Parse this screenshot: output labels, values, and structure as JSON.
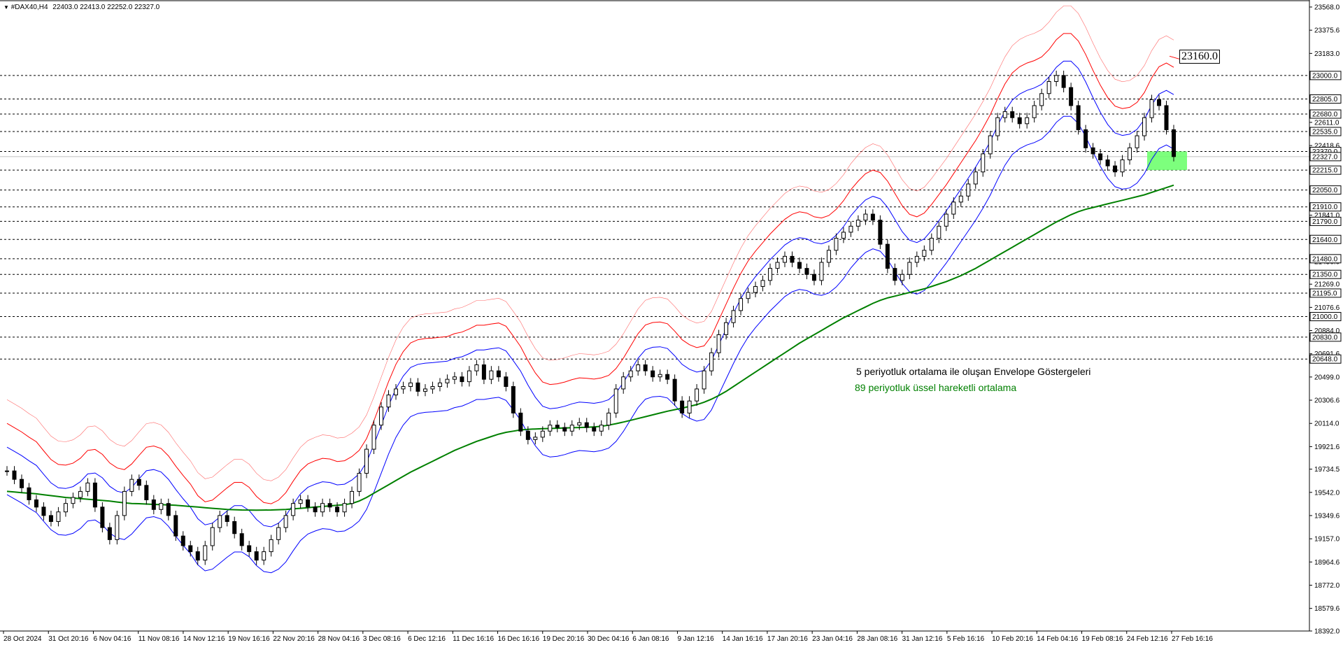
{
  "header": {
    "symbol": "#DAX40,H4",
    "ohlc": "22403.0 22413.0 22252.0 22327.0"
  },
  "annotations": {
    "envelope_note": "5 periyotluk ortalama ile oluşan Envelope Göstergeleri",
    "ema_note": "89 periyotluk üssel hareketli ortalama",
    "target_label": "23160.0"
  },
  "colors": {
    "candles": "#000000",
    "envelope_inner": "#0000ff",
    "envelope_middle": "#ff0000",
    "envelope_outer": "#ff6666",
    "ema": "#008000",
    "highlight": "#66ff66",
    "ema_note_text": "#008000"
  },
  "chart_data": {
    "type": "line",
    "ylim": [
      18392.0,
      23568.0
    ],
    "grid": false,
    "y_ticks": [
      "23568.0",
      "23375.6",
      "23183.0",
      "22990.6",
      "22805.0",
      "22611.0",
      "22418.6",
      "22327.0",
      "22226.0",
      "22033.6",
      "21841.0",
      "21648.6",
      "21456.0",
      "21269.0",
      "21076.6",
      "20884.0",
      "20691.6",
      "20499.0",
      "20306.6",
      "20114.0",
      "19921.6",
      "19734.5",
      "19542.0",
      "19349.6",
      "19157.0",
      "18964.6",
      "18772.0",
      "18579.6",
      "18392.0"
    ],
    "x_ticks": [
      "28 Oct 2024",
      "31 Oct 20:16",
      "6 Nov 04:16",
      "11 Nov 08:16",
      "14 Nov 12:16",
      "19 Nov 16:16",
      "22 Nov 20:16",
      "28 Nov 04:16",
      "3 Dec 08:16",
      "6 Dec 12:16",
      "11 Dec 16:16",
      "16 Dec 16:16",
      "19 Dec 20:16",
      "30 Dec 04:16",
      "6 Jan 08:16",
      "9 Jan 12:16",
      "14 Jan 16:16",
      "17 Jan 20:16",
      "23 Jan 04:16",
      "28 Jan 08:16",
      "31 Jan 12:16",
      "5 Feb 16:16",
      "10 Feb 20:16",
      "14 Feb 04:16",
      "19 Feb 08:16",
      "24 Feb 12:16",
      "27 Feb 16:16"
    ],
    "horizontal_levels": [
      "23000.0",
      "22805.0",
      "22680.0",
      "22535.0",
      "22370.0",
      "22215.0",
      "22050.0",
      "21910.0",
      "21790.0",
      "21640.0",
      "21480.0",
      "21350.0",
      "21195.0",
      "21000.0",
      "20830.0",
      "20648.0"
    ],
    "current_price": "22327.0",
    "highlight_zone": [
      22215.0,
      22370.0
    ],
    "close_series": [
      19720,
      19650,
      19580,
      19480,
      19420,
      19350,
      19300,
      19380,
      19450,
      19500,
      19550,
      19620,
      19420,
      19250,
      19150,
      19350,
      19550,
      19650,
      19600,
      19480,
      19400,
      19450,
      19350,
      19180,
      19100,
      19050,
      18980,
      19100,
      19250,
      19350,
      19300,
      19200,
      19100,
      19050,
      18980,
      19050,
      19150,
      19250,
      19350,
      19450,
      19480,
      19420,
      19380,
      19450,
      19420,
      19380,
      19450,
      19550,
      19700,
      19900,
      20100,
      20250,
      20350,
      20400,
      20420,
      20450,
      20380,
      20400,
      20420,
      20450,
      20480,
      20500,
      20460,
      20550,
      20600,
      20480,
      20550,
      20500,
      20420,
      20200,
      20050,
      19980,
      20000,
      20050,
      20100,
      20080,
      20050,
      20100,
      20120,
      20080,
      20050,
      20100,
      20200,
      20400,
      20500,
      20550,
      20600,
      20550,
      20500,
      20520,
      20480,
      20300,
      20200,
      20300,
      20400,
      20550,
      20700,
      20850,
      20950,
      21050,
      21150,
      21200,
      21250,
      21300,
      21400,
      21450,
      21500,
      21450,
      21400,
      21350,
      21300,
      21450,
      21550,
      21650,
      21700,
      21750,
      21800,
      21850,
      21800,
      21600,
      21400,
      21300,
      21350,
      21450,
      21500,
      21550,
      21650,
      21750,
      21850,
      21950,
      22000,
      22100,
      22200,
      22350,
      22500,
      22650,
      22700,
      22650,
      22600,
      22650,
      22750,
      22850,
      22950,
      23000,
      22900,
      22750,
      22550,
      22400,
      22350,
      22300,
      22250,
      22200,
      22300,
      22400,
      22500,
      22650,
      22800,
      22750,
      22550,
      22327
    ],
    "ema89_series": [
      19550,
      19545,
      19540,
      19535,
      19530,
      19522,
      19515,
      19508,
      19500,
      19495,
      19490,
      19485,
      19480,
      19475,
      19470,
      19462,
      19455,
      19450,
      19448,
      19445,
      19442,
      19440,
      19438,
      19435,
      19430,
      19425,
      19420,
      19415,
      19410,
      19405,
      19400,
      19398,
      19396,
      19395,
      19394,
      19395,
      19396,
      19398,
      19400,
      19405,
      19410,
      19415,
      19420,
      19425,
      19430,
      19435,
      19440,
      19450,
      19470,
      19500,
      19535,
      19570,
      19605,
      19640,
      19675,
      19710,
      19740,
      19770,
      19800,
      19830,
      19860,
      19890,
      19915,
      19940,
      19965,
      19985,
      20005,
      20025,
      20040,
      20050,
      20060,
      20065,
      20068,
      20070,
      20072,
      20074,
      20076,
      20078,
      20080,
      20082,
      20085,
      20090,
      20100,
      20112,
      20125,
      20140,
      20155,
      20170,
      20185,
      20200,
      20215,
      20228,
      20240,
      20255,
      20270,
      20290,
      20315,
      20345,
      20380,
      20420,
      20460,
      20500,
      20540,
      20580,
      20620,
      20660,
      20700,
      20740,
      20780,
      20815,
      20850,
      20885,
      20920,
      20955,
      20990,
      21020,
      21050,
      21080,
      21110,
      21135,
      21155,
      21170,
      21185,
      21200,
      21215,
      21230,
      21250,
      21270,
      21290,
      21315,
      21340,
      21370,
      21400,
      21435,
      21470,
      21505,
      21540,
      21575,
      21610,
      21645,
      21680,
      21715,
      21750,
      21785,
      21815,
      21845,
      21870,
      21890,
      21905,
      21920,
      21935,
      21950,
      21965,
      21980,
      21995,
      22010,
      22030,
      22050,
      22070,
      22090
    ]
  }
}
